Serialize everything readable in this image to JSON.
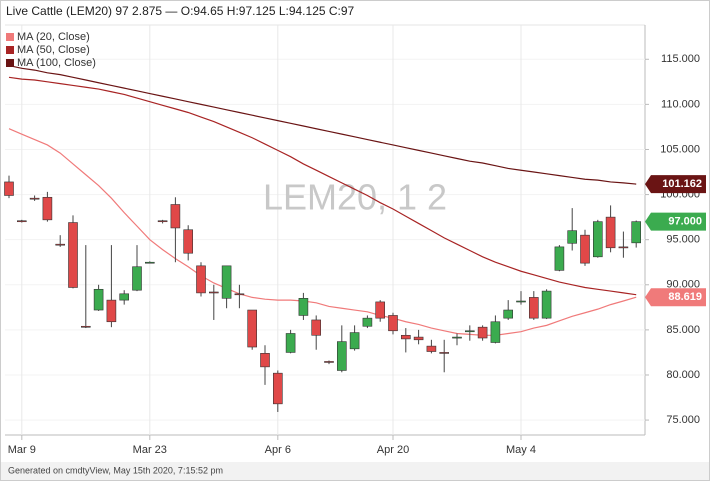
{
  "chart_data": {
    "type": "candlestick",
    "title": "Live Cattle (LEM20) 97 2.875 — O:94.65 H:97.125 L:94.125 C:97",
    "watermark": "LEM20, 1 2",
    "footer": "Generated on cmdtyView, May 15th 2020, 7:15:52 pm",
    "categories": [
      null,
      "Mar 9",
      null,
      null,
      null,
      null,
      null,
      null,
      null,
      null,
      null,
      "Mar 23",
      null,
      null,
      null,
      null,
      null,
      null,
      null,
      null,
      null,
      "Apr 6",
      null,
      null,
      null,
      null,
      null,
      null,
      null,
      null,
      "Apr 20",
      null,
      null,
      null,
      null,
      null,
      null,
      null,
      null,
      null,
      "May 4",
      null,
      null,
      null,
      null,
      null,
      null,
      null,
      null,
      null
    ],
    "open": [
      101.4,
      97.1,
      99.6,
      99.7,
      94.5,
      96.9,
      85.4,
      87.2,
      88.3,
      88.3,
      89.4,
      92.5,
      97.1,
      98.9,
      96.1,
      92.1,
      89.2,
      88.5,
      89.0,
      87.2,
      82.4,
      80.2,
      82.5,
      86.6,
      86.1,
      81.5,
      80.5,
      82.9,
      85.4,
      88.1,
      86.6,
      84.4,
      84.2,
      83.2,
      82.5,
      84.1,
      84.8,
      85.3,
      83.6,
      86.3,
      88.1,
      88.6,
      86.3,
      91.6,
      94.6,
      95.5,
      93.1,
      97.5,
      94.2,
      94.65
    ],
    "high": [
      102.1,
      97.2,
      99.9,
      100.3,
      95.5,
      97.7,
      94.4,
      90.0,
      94.4,
      89.4,
      94.4,
      92.6,
      97.2,
      99.7,
      96.6,
      92.5,
      90.0,
      92.1,
      90.0,
      87.2,
      83.3,
      80.5,
      85.0,
      89.1,
      86.6,
      81.6,
      85.5,
      85.5,
      86.6,
      88.3,
      86.9,
      85.2,
      85.0,
      83.9,
      83.9,
      84.6,
      85.5,
      85.5,
      86.6,
      88.3,
      89.3,
      89.3,
      89.5,
      94.4,
      98.5,
      96.1,
      97.2,
      98.8,
      95.9,
      97.125
    ],
    "low": [
      99.6,
      96.9,
      99.3,
      97.0,
      94.2,
      89.6,
      85.2,
      87.1,
      85.3,
      87.8,
      89.3,
      92.4,
      96.8,
      92.5,
      92.7,
      88.7,
      86.1,
      87.4,
      87.4,
      82.8,
      78.9,
      75.9,
      82.4,
      86.1,
      82.8,
      81.2,
      80.3,
      82.7,
      85.2,
      85.9,
      84.5,
      82.5,
      83.4,
      82.4,
      80.3,
      83.3,
      83.8,
      83.8,
      83.5,
      86.1,
      87.8,
      86.1,
      86.2,
      91.5,
      93.8,
      92.1,
      93.0,
      93.6,
      93.0,
      94.125
    ],
    "close": [
      99.9,
      97.0,
      99.5,
      97.2,
      94.4,
      89.7,
      85.3,
      89.5,
      85.9,
      89.0,
      92.0,
      92.5,
      97.0,
      96.3,
      93.5,
      89.1,
      89.1,
      92.1,
      88.9,
      83.1,
      80.9,
      76.8,
      84.6,
      88.5,
      84.4,
      81.4,
      83.7,
      84.7,
      86.3,
      86.3,
      84.9,
      84.0,
      83.9,
      82.6,
      82.4,
      84.2,
      84.9,
      84.1,
      85.9,
      87.2,
      88.2,
      86.3,
      89.3,
      94.2,
      96.0,
      92.4,
      97.0,
      94.1,
      94.1,
      97
    ],
    "last_close_label": "97.000",
    "up_color": "#3bab4f",
    "down_color": "#e04848",
    "series": [
      {
        "name": "MA (20, Close)",
        "color": "#f07a7a",
        "show_last_value": true,
        "values": [
          107.3,
          106.7,
          106.1,
          105.5,
          104.6,
          103.4,
          102.2,
          101.0,
          99.6,
          98.0,
          96.5,
          95.0,
          93.9,
          92.9,
          92.0,
          91.0,
          90.2,
          89.6,
          89.0,
          88.6,
          88.4,
          88.3,
          88.3,
          88.2,
          88.0,
          87.6,
          87.4,
          87.2,
          87.0,
          86.6,
          86.3,
          85.9,
          85.6,
          85.2,
          84.9,
          84.6,
          84.5,
          84.4,
          84.4,
          84.6,
          84.8,
          85.2,
          85.5,
          86.0,
          86.5,
          86.9,
          87.3,
          87.8,
          88.2,
          88.619
        ]
      },
      {
        "name": "MA (50, Close)",
        "color": "#a82424",
        "show_last_value": false,
        "values": [
          113.0,
          112.8,
          112.7,
          112.5,
          112.3,
          112.1,
          111.9,
          111.7,
          111.4,
          111.1,
          110.7,
          110.3,
          109.9,
          109.5,
          109.1,
          108.6,
          108.1,
          107.5,
          106.9,
          106.3,
          105.6,
          104.9,
          104.2,
          103.4,
          102.7,
          102.0,
          101.3,
          100.6,
          99.9,
          99.1,
          98.4,
          97.6,
          96.8,
          96.0,
          95.2,
          94.5,
          93.8,
          93.1,
          92.5,
          92.0,
          91.5,
          91.1,
          90.7,
          90.3,
          90.0,
          89.7,
          89.5,
          89.3,
          89.1,
          88.9
        ]
      },
      {
        "name": "MA (100, Close)",
        "color": "#6a1414",
        "show_last_value": true,
        "values": [
          114.3,
          114.0,
          113.8,
          113.5,
          113.3,
          113.0,
          112.7,
          112.4,
          112.1,
          111.8,
          111.5,
          111.2,
          110.9,
          110.6,
          110.3,
          110.0,
          109.7,
          109.4,
          109.1,
          108.8,
          108.5,
          108.2,
          107.9,
          107.6,
          107.3,
          107.0,
          106.7,
          106.4,
          106.1,
          105.8,
          105.5,
          105.2,
          104.9,
          104.6,
          104.3,
          104.0,
          103.7,
          103.5,
          103.2,
          102.9,
          102.7,
          102.5,
          102.3,
          102.1,
          101.9,
          101.7,
          101.6,
          101.4,
          101.3,
          101.162
        ]
      }
    ],
    "ylim": [
      73.9,
      118.8
    ],
    "yticks": [
      {
        "value": 75,
        "label": "75.000"
      },
      {
        "value": 80,
        "label": "80.000"
      },
      {
        "value": 85,
        "label": "85.000"
      },
      {
        "value": 90,
        "label": "90.000"
      },
      {
        "value": 95,
        "label": "95.000"
      },
      {
        "value": 100,
        "label": "100.000"
      },
      {
        "value": 105,
        "label": "105.000"
      },
      {
        "value": 110,
        "label": "110.000"
      },
      {
        "value": 115,
        "label": "115.000"
      }
    ],
    "grid": true
  }
}
